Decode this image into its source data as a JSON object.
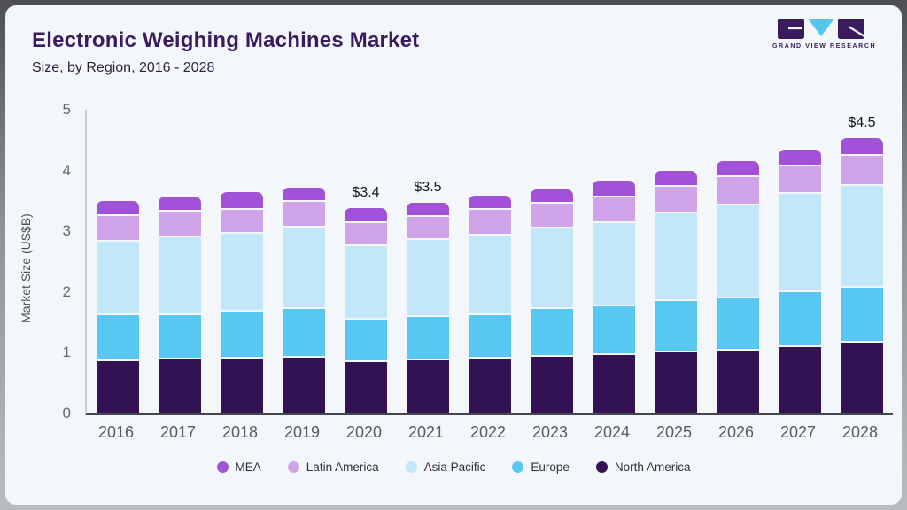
{
  "header": {
    "title": "Electronic Weighing Machines Market",
    "subtitle": "Size, by Region, 2016 - 2028"
  },
  "logo": {
    "name": "grand-view-research-logo",
    "text": "GRAND VIEW RESEARCH",
    "colors": {
      "block": "#3a1c5e",
      "triangle": "#56c5ee"
    }
  },
  "chart_data": {
    "type": "bar",
    "stacked": true,
    "title": "Electronic Weighing Machines Market",
    "subtitle": "Size, by Region, 2016 - 2028",
    "ylabel": "Market Size (US$B)",
    "ylim": [
      0,
      5
    ],
    "yticks": [
      0,
      1,
      2,
      3,
      4,
      5
    ],
    "grid": false,
    "legend_position": "bottom",
    "categories": [
      "2016",
      "2017",
      "2018",
      "2019",
      "2020",
      "2021",
      "2022",
      "2023",
      "2024",
      "2025",
      "2026",
      "2027",
      "2028"
    ],
    "series": [
      {
        "name": "North America",
        "color": "#321253",
        "values": [
          0.89,
          0.92,
          0.94,
          0.95,
          0.87,
          0.91,
          0.93,
          0.96,
          0.99,
          1.04,
          1.06,
          1.12,
          1.19
        ]
      },
      {
        "name": "Europe",
        "color": "#58c7f2",
        "values": [
          0.75,
          0.73,
          0.76,
          0.79,
          0.7,
          0.71,
          0.71,
          0.78,
          0.8,
          0.83,
          0.86,
          0.9,
          0.91
        ]
      },
      {
        "name": "Asia Pacific",
        "color": "#c2e7f8",
        "values": [
          1.23,
          1.29,
          1.29,
          1.36,
          1.22,
          1.27,
          1.33,
          1.35,
          1.38,
          1.46,
          1.55,
          1.63,
          1.69
        ]
      },
      {
        "name": "Latin America",
        "color": "#cfa4e8",
        "values": [
          0.4,
          0.4,
          0.39,
          0.4,
          0.36,
          0.37,
          0.4,
          0.38,
          0.41,
          0.43,
          0.44,
          0.44,
          0.47
        ]
      },
      {
        "name": "MEA",
        "color": "#a252d8",
        "values": [
          0.23,
          0.23,
          0.26,
          0.22,
          0.23,
          0.21,
          0.21,
          0.22,
          0.26,
          0.24,
          0.24,
          0.26,
          0.27
        ]
      }
    ],
    "annotations": [
      {
        "category": "2020",
        "label": "$3.4"
      },
      {
        "category": "2021",
        "label": "$3.5"
      },
      {
        "category": "2028",
        "label": "$4.5"
      }
    ],
    "legend": [
      "MEA",
      "Latin America",
      "Asia Pacific",
      "Europe",
      "North America"
    ]
  }
}
